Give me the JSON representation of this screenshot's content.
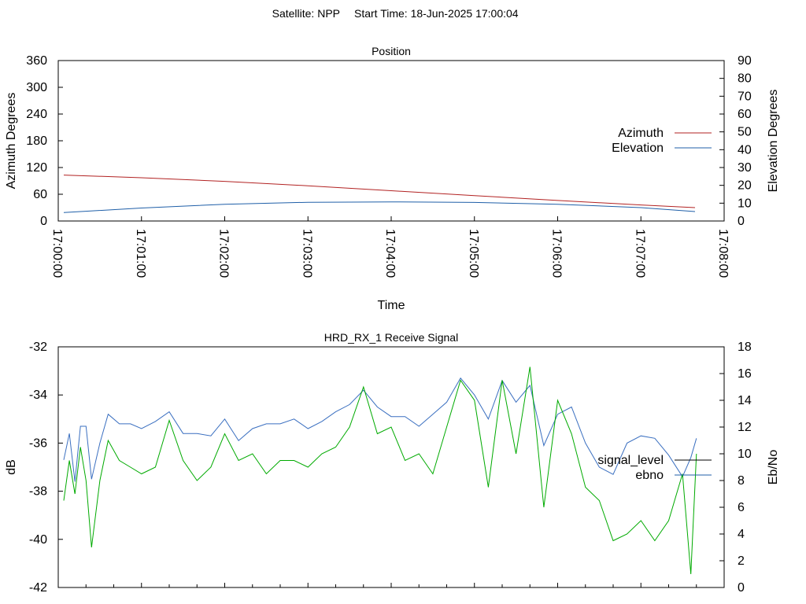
{
  "page": {
    "satellite_label": "Satellite: NPP",
    "start_label": "Start Time: 18-Jun-2025 17:00:04"
  },
  "chart_data": [
    {
      "type": "line",
      "title": "Position",
      "xlabel": "Time",
      "ylabel": "Azimuth Degrees",
      "y2label": "Elevation Degrees",
      "x_ticks": [
        "17:00:00",
        "17:01:00",
        "17:02:00",
        "17:03:00",
        "17:04:00",
        "17:05:00",
        "17:06:00",
        "17:07:00",
        "17:08:00"
      ],
      "xlim": [
        0,
        480
      ],
      "ylim": [
        0,
        360
      ],
      "y_ticks": [
        0,
        60,
        120,
        180,
        240,
        300,
        360
      ],
      "y2lim": [
        0,
        90
      ],
      "y2_ticks": [
        0,
        10,
        20,
        30,
        40,
        50,
        60,
        70,
        80,
        90
      ],
      "legend_position": "right",
      "colors": {
        "azimuth": "#b22222",
        "elevation": "#1f5fa8"
      },
      "series": [
        {
          "name": "Azimuth",
          "axis": "y1",
          "x_seconds": [
            4,
            60,
            120,
            180,
            240,
            300,
            360,
            420,
            459
          ],
          "values": [
            103,
            97,
            89,
            79,
            68,
            57,
            46,
            36,
            30
          ]
        },
        {
          "name": "Elevation",
          "axis": "y2",
          "x_seconds": [
            4,
            60,
            120,
            180,
            240,
            300,
            360,
            420,
            459
          ],
          "values": [
            4.7,
            7.3,
            9.4,
            10.5,
            10.7,
            10.4,
            9.4,
            7.5,
            5.3
          ]
        }
      ]
    },
    {
      "type": "line",
      "title": "HRD_RX_1 Receive Signal",
      "ylabel": "dB",
      "y2label": "Eb/No",
      "xlim": [
        0,
        480
      ],
      "ylim": [
        -42,
        -32
      ],
      "y_ticks": [
        -42,
        -40,
        -38,
        -36,
        -34,
        -32
      ],
      "y2lim": [
        0,
        18
      ],
      "y2_ticks": [
        0,
        2,
        4,
        6,
        8,
        10,
        12,
        14,
        16,
        18
      ],
      "x_minor_tick_count": 24,
      "legend_position": "right",
      "colors": {
        "signal_level": "#000000",
        "ebno_legend": "#1f5fa8",
        "trace_blue": "#3a6fc0",
        "trace_green": "#00aa00"
      },
      "series": [
        {
          "name": "signal_level",
          "axis": "y1",
          "x_seconds": [
            4,
            8,
            12,
            16,
            20,
            24,
            30,
            36,
            44,
            52,
            60,
            70,
            80,
            90,
            100,
            110,
            120,
            130,
            140,
            150,
            160,
            170,
            180,
            190,
            200,
            210,
            220,
            230,
            240,
            250,
            260,
            270,
            280,
            290,
            300,
            310,
            320,
            330,
            340,
            350,
            360,
            370,
            380,
            390,
            400,
            410,
            420,
            430,
            440,
            450,
            456,
            460
          ],
          "values": [
            -36.7,
            -35.6,
            -37.6,
            -35.3,
            -35.3,
            -37.5,
            -36.0,
            -34.8,
            -35.2,
            -35.2,
            -35.4,
            -35.1,
            -34.7,
            -35.6,
            -35.6,
            -35.7,
            -35.0,
            -35.9,
            -35.4,
            -35.2,
            -35.2,
            -35.0,
            -35.4,
            -35.1,
            -34.7,
            -34.4,
            -33.8,
            -34.5,
            -34.9,
            -34.9,
            -35.3,
            -34.8,
            -34.3,
            -33.3,
            -34.0,
            -35.0,
            -33.4,
            -34.3,
            -33.6,
            -36.1,
            -34.8,
            -34.5,
            -36.0,
            -37.0,
            -37.3,
            -36.0,
            -35.7,
            -35.8,
            -36.5,
            -37.4,
            -36.6,
            -35.8
          ]
        },
        {
          "name": "ebno",
          "axis": "y2",
          "x_seconds": [
            4,
            8,
            12,
            16,
            20,
            24,
            30,
            36,
            44,
            52,
            60,
            70,
            80,
            90,
            100,
            110,
            120,
            130,
            140,
            150,
            160,
            170,
            180,
            190,
            200,
            210,
            220,
            230,
            240,
            250,
            260,
            270,
            280,
            290,
            300,
            310,
            320,
            330,
            340,
            350,
            360,
            370,
            380,
            390,
            400,
            410,
            420,
            430,
            440,
            450,
            456,
            460
          ],
          "values": [
            6.5,
            9.5,
            7.0,
            10.5,
            8.0,
            3.0,
            8.0,
            11.0,
            9.5,
            9.0,
            8.5,
            9.0,
            12.5,
            9.5,
            8.0,
            9.0,
            11.5,
            9.5,
            10.0,
            8.5,
            9.5,
            9.5,
            9.0,
            10.0,
            10.5,
            12.0,
            15.0,
            11.5,
            12.0,
            9.5,
            10.0,
            8.5,
            12.0,
            15.5,
            14.0,
            7.5,
            15.5,
            10.0,
            16.5,
            6.0,
            14.0,
            11.5,
            7.5,
            6.5,
            3.5,
            4.0,
            5.0,
            3.5,
            5.0,
            8.5,
            1.0,
            10.0
          ]
        }
      ]
    }
  ]
}
